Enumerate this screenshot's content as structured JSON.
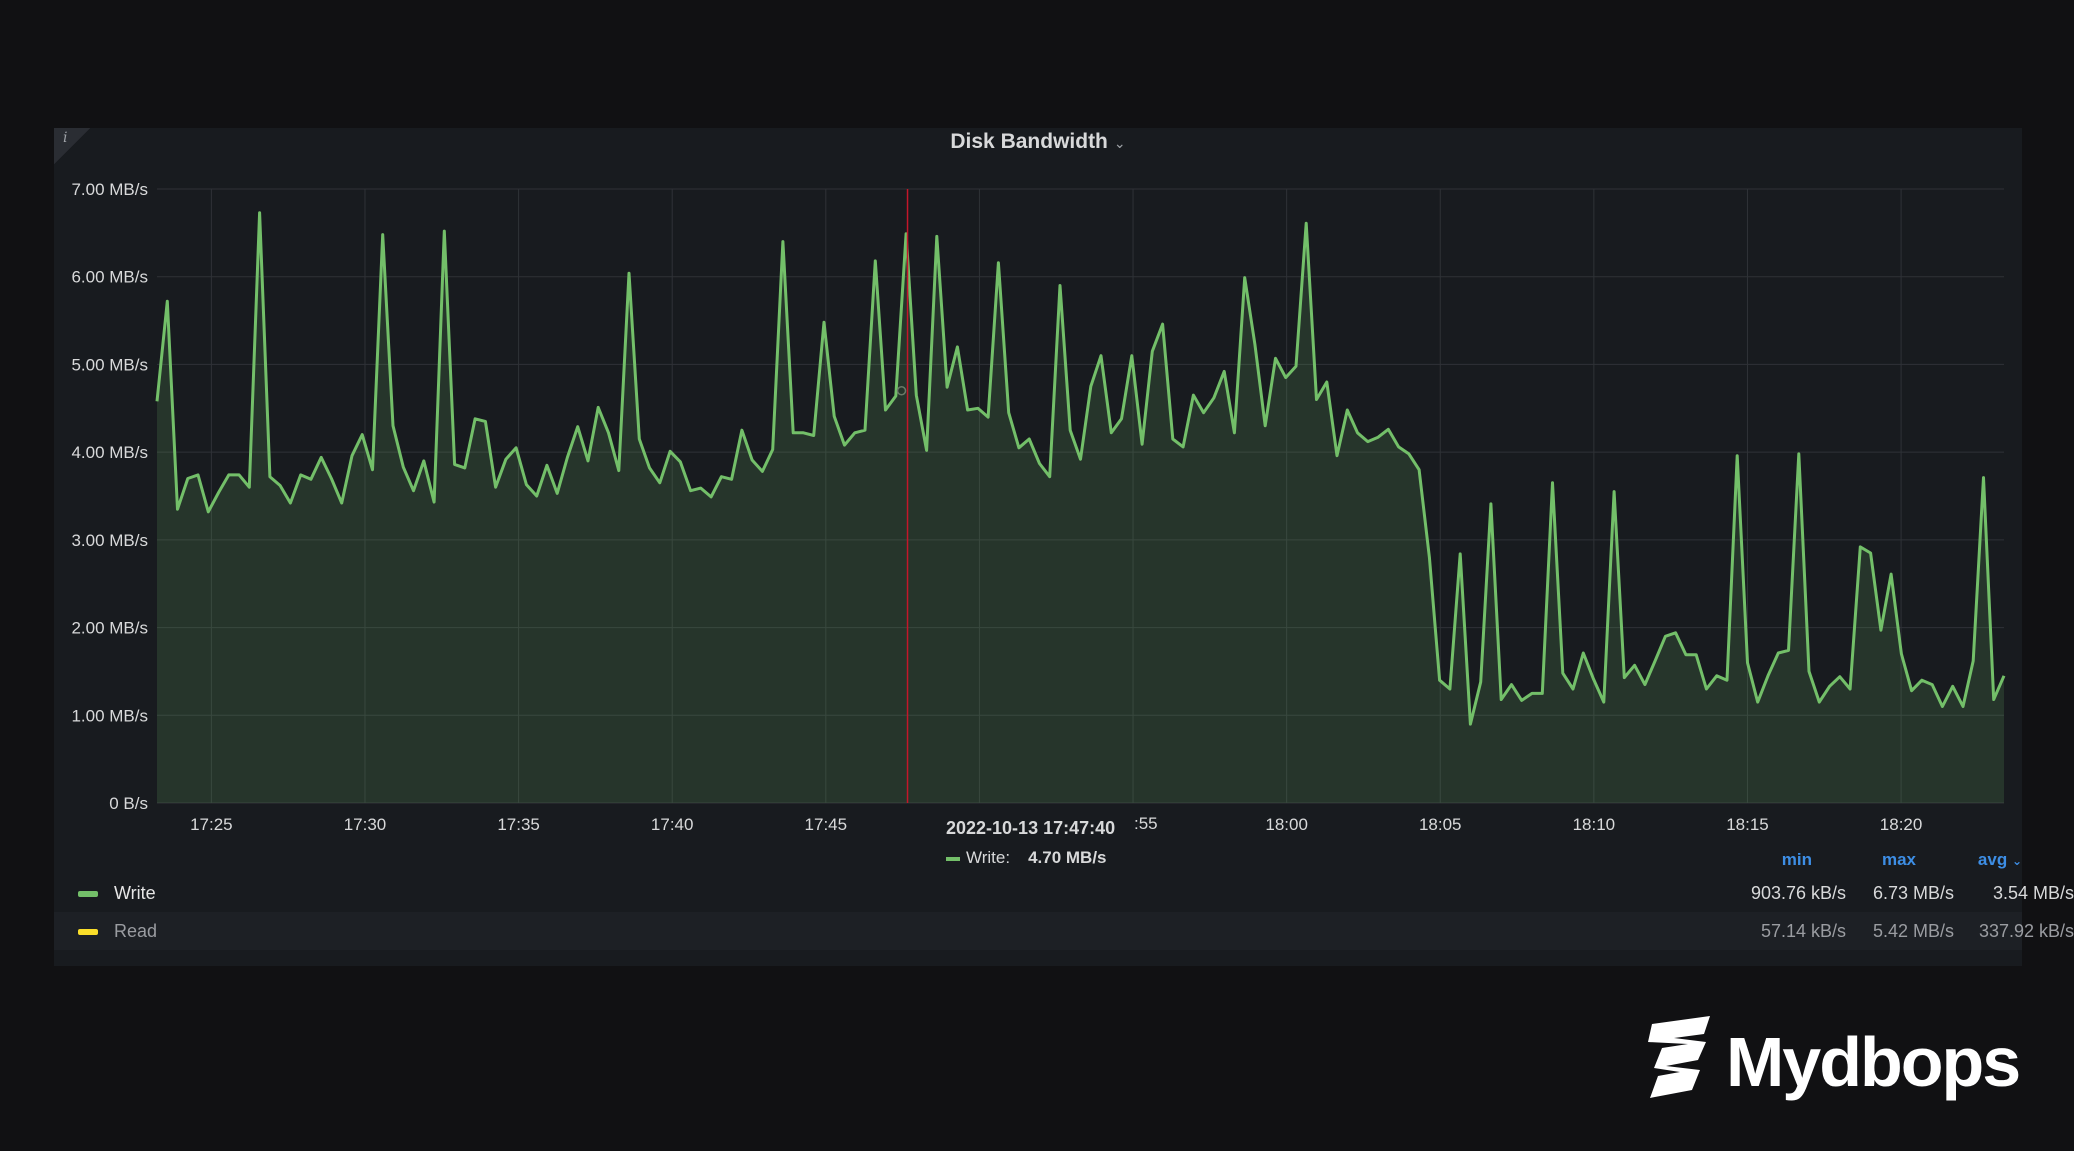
{
  "panel": {
    "title": "Disk Bandwidth",
    "info_icon": "i"
  },
  "tooltip": {
    "time": "2022-10-13 17:47:40",
    "series": "Write:",
    "value": "4.70 MB/s",
    "partial_tick": ":55"
  },
  "legend": {
    "headers": {
      "min": "min",
      "max": "max",
      "avg": "avg"
    },
    "rows": [
      {
        "name": "Write",
        "color": "#73bf69",
        "min": "903.76 kB/s",
        "max": "6.73 MB/s",
        "avg": "3.54 MB/s"
      },
      {
        "name": "Read",
        "color": "#fade2a",
        "min": "57.14 kB/s",
        "max": "5.42 MB/s",
        "avg": "337.92 kB/s"
      }
    ]
  },
  "brand": {
    "name": "Mydbops"
  },
  "colors": {
    "write": "#73bf69",
    "read": "#fade2a",
    "cursor": "#c4162a",
    "accent": "#3d8ee5"
  },
  "chart_data": {
    "type": "area",
    "title": "Disk Bandwidth",
    "x_ticks": [
      "17:25",
      "17:30",
      "17:35",
      "17:40",
      "17:45",
      "18:00",
      "18:05",
      "18:10",
      "18:15",
      "18:20"
    ],
    "y_ticks": [
      "0 B/s",
      "1.00 MB/s",
      "2.00 MB/s",
      "3.00 MB/s",
      "4.00 MB/s",
      "5.00 MB/s",
      "6.00 MB/s",
      "7.00 MB/s"
    ],
    "ylim": [
      0,
      7
    ],
    "x_unit": "minutes since 17:23:14",
    "xlim": [
      0,
      60.12
    ],
    "cursor_x": 24.43,
    "grid": true,
    "legend_position": "bottom",
    "series": [
      {
        "name": "Write",
        "color": "#73bf69",
        "values": [
          4.58,
          5.72,
          3.35,
          3.7,
          3.74,
          3.32,
          3.54,
          3.74,
          3.74,
          3.6,
          6.73,
          3.72,
          3.62,
          3.42,
          3.74,
          3.69,
          3.94,
          3.7,
          3.42,
          3.96,
          4.2,
          3.8,
          6.48,
          4.3,
          3.83,
          3.56,
          3.9,
          3.43,
          6.52,
          3.86,
          3.82,
          4.38,
          4.35,
          3.6,
          3.92,
          4.05,
          3.63,
          3.5,
          3.85,
          3.53,
          3.94,
          4.29,
          3.9,
          4.51,
          4.22,
          3.79,
          6.04,
          4.15,
          3.82,
          3.65,
          4.01,
          3.89,
          3.56,
          3.59,
          3.49,
          3.72,
          3.69,
          4.25,
          3.91,
          3.78,
          4.03,
          6.4,
          4.22,
          4.22,
          4.19,
          5.48,
          4.41,
          4.08,
          4.22,
          4.25,
          6.18,
          4.48,
          4.64,
          6.49,
          4.65,
          4.02,
          6.46,
          4.74,
          5.2,
          4.48,
          4.5,
          4.4,
          6.16,
          4.45,
          4.05,
          4.15,
          3.87,
          3.72,
          5.9,
          4.25,
          3.92,
          4.75,
          5.1,
          4.22,
          4.38,
          5.1,
          4.09,
          5.15,
          5.46,
          4.15,
          4.06,
          4.65,
          4.45,
          4.62,
          4.92,
          4.22,
          5.99,
          5.23,
          4.3,
          5.07,
          4.85,
          4.98,
          6.61,
          4.6,
          4.8,
          3.96,
          4.48,
          4.22,
          4.12,
          4.17,
          4.26,
          4.06,
          3.98,
          3.8,
          2.8,
          1.4,
          1.3,
          2.84,
          0.9,
          1.38,
          3.41,
          1.18,
          1.35,
          1.17,
          1.25,
          1.25,
          3.65,
          1.48,
          1.3,
          1.71,
          1.41,
          1.15,
          3.55,
          1.43,
          1.57,
          1.35,
          1.62,
          1.9,
          1.94,
          1.69,
          1.69,
          1.3,
          1.45,
          1.4,
          3.96,
          1.6,
          1.15,
          1.45,
          1.71,
          1.74,
          3.98,
          1.5,
          1.15,
          1.33,
          1.44,
          1.3,
          2.92,
          2.85,
          1.97,
          2.61,
          1.7,
          1.28,
          1.4,
          1.35,
          1.1,
          1.33,
          1.1,
          1.62,
          3.71,
          1.18,
          1.45
        ]
      }
    ]
  }
}
